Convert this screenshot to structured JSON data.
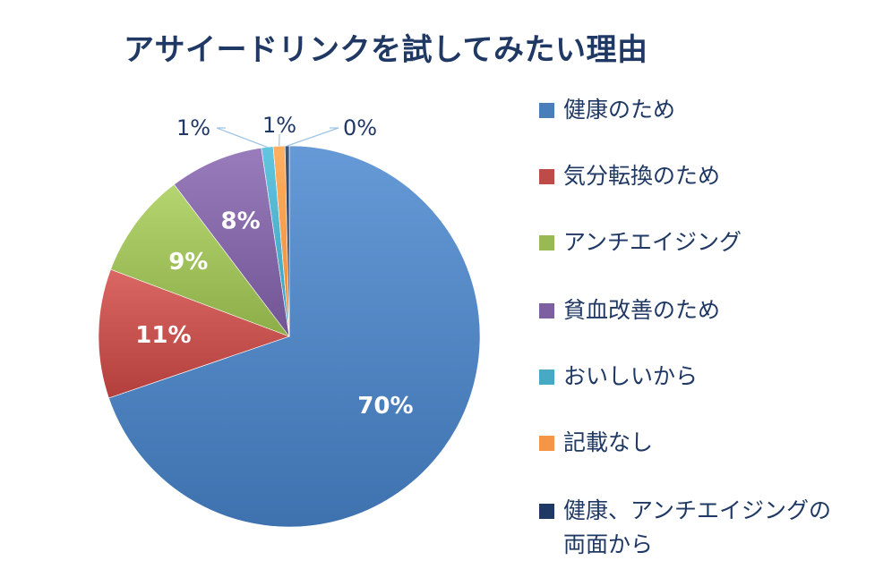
{
  "chart_data": {
    "type": "pie",
    "title": "アサイードリンクを試してみたい理由",
    "categories": [
      "健康のため",
      "気分転換のため",
      "アンチエイジング",
      "貧血改善のため",
      "おいしいから",
      "記載なし",
      "健康、アンチエイジングの両面から"
    ],
    "values": [
      70,
      11,
      9,
      8,
      1,
      1,
      0
    ],
    "data_labels": [
      "70%",
      "11%",
      "9%",
      "8%",
      "1%",
      "1%",
      "0%"
    ],
    "colors": [
      "#4a7ebb",
      "#be4b48",
      "#98b954",
      "#7d60a0",
      "#46aac5",
      "#f69545",
      "#1f3864"
    ],
    "legend_position": "right"
  }
}
